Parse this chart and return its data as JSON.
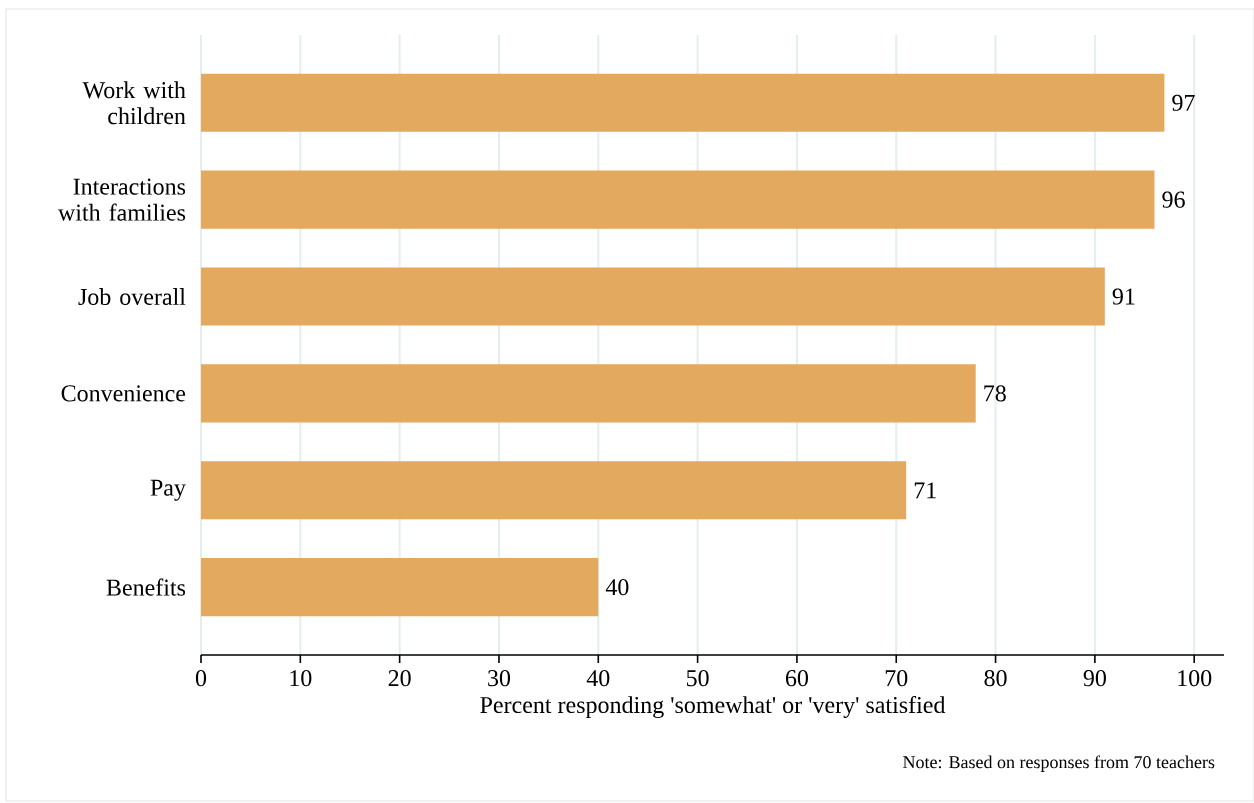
{
  "chart_data": {
    "type": "bar",
    "orientation": "horizontal",
    "xlabel": "Percent responding 'somewhat' or 'very' satisfied",
    "categories": [
      "Work with children",
      "Interactions with families",
      "Job overall",
      "Convenience",
      "Pay",
      "Benefits"
    ],
    "values": [
      97,
      96,
      91,
      78,
      71,
      40
    ],
    "color": "#e3a95e",
    "data_labels": true,
    "xlim": [
      0,
      103
    ],
    "xticks": [
      0,
      10,
      20,
      30,
      40,
      50,
      60,
      70,
      80,
      90,
      100
    ],
    "grid": "x",
    "annotations": [
      "Note: Based on responses from 70 teachers"
    ]
  }
}
